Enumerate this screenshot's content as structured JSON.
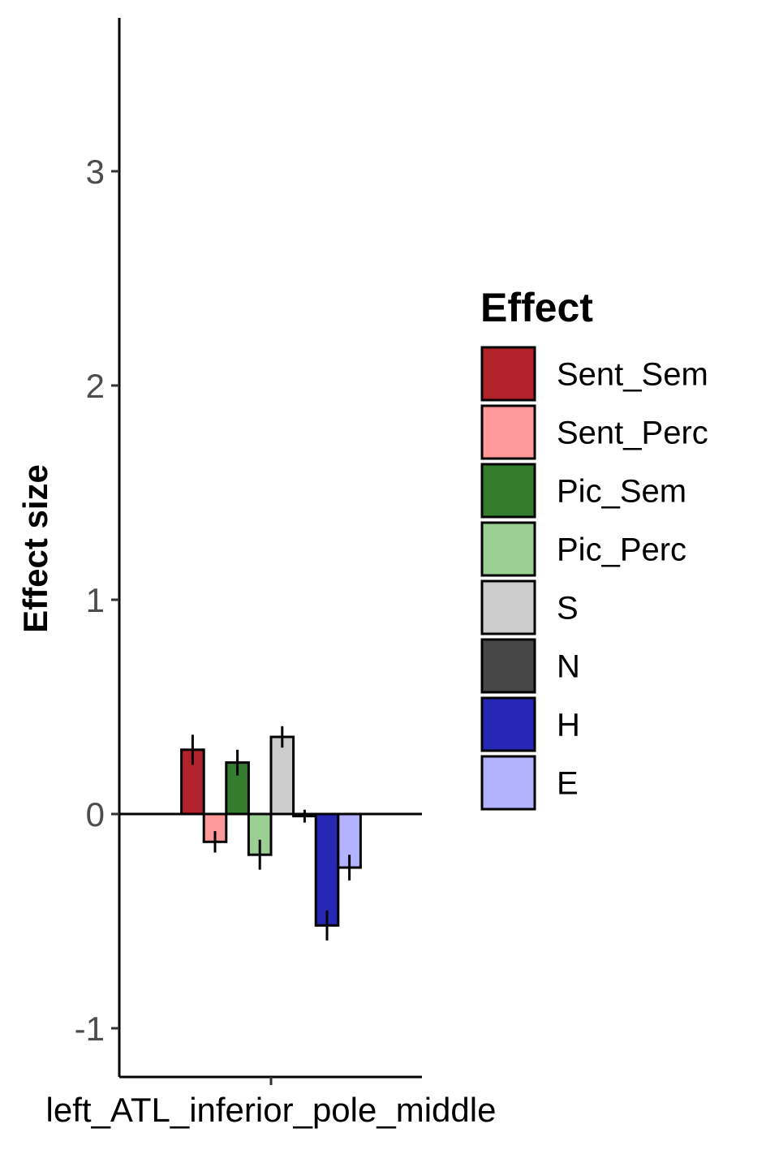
{
  "chart_data": {
    "type": "bar",
    "categories": [
      "left_ATL_inferior_pole_middle"
    ],
    "ylabel": "Effect size",
    "xlabel": "",
    "ylim": [
      -1.22,
      3.72
    ],
    "yticks": [
      -1,
      0,
      1,
      2,
      3
    ],
    "grid": false,
    "legend_position": "right",
    "legend_title": "Effect",
    "series": [
      {
        "name": "Sent_Sem",
        "color": "#B2222A",
        "values": [
          0.3
        ],
        "error": [
          0.07
        ]
      },
      {
        "name": "Sent_Perc",
        "color": "#FF9999",
        "values": [
          -0.13
        ],
        "error": [
          0.05
        ]
      },
      {
        "name": "Pic_Sem",
        "color": "#347C2E",
        "values": [
          0.24
        ],
        "error": [
          0.06
        ]
      },
      {
        "name": "Pic_Perc",
        "color": "#9CCF93",
        "values": [
          -0.19
        ],
        "error": [
          0.07
        ]
      },
      {
        "name": "S",
        "color": "#CCCCCC",
        "values": [
          0.36
        ],
        "error": [
          0.05
        ]
      },
      {
        "name": "N",
        "color": "#474747",
        "values": [
          -0.01
        ],
        "error": [
          0.03
        ]
      },
      {
        "name": "H",
        "color": "#2727B5",
        "values": [
          -0.52
        ],
        "error": [
          0.07
        ]
      },
      {
        "name": "E",
        "color": "#B2B2FF",
        "values": [
          -0.25
        ],
        "error": [
          0.06
        ]
      }
    ]
  }
}
